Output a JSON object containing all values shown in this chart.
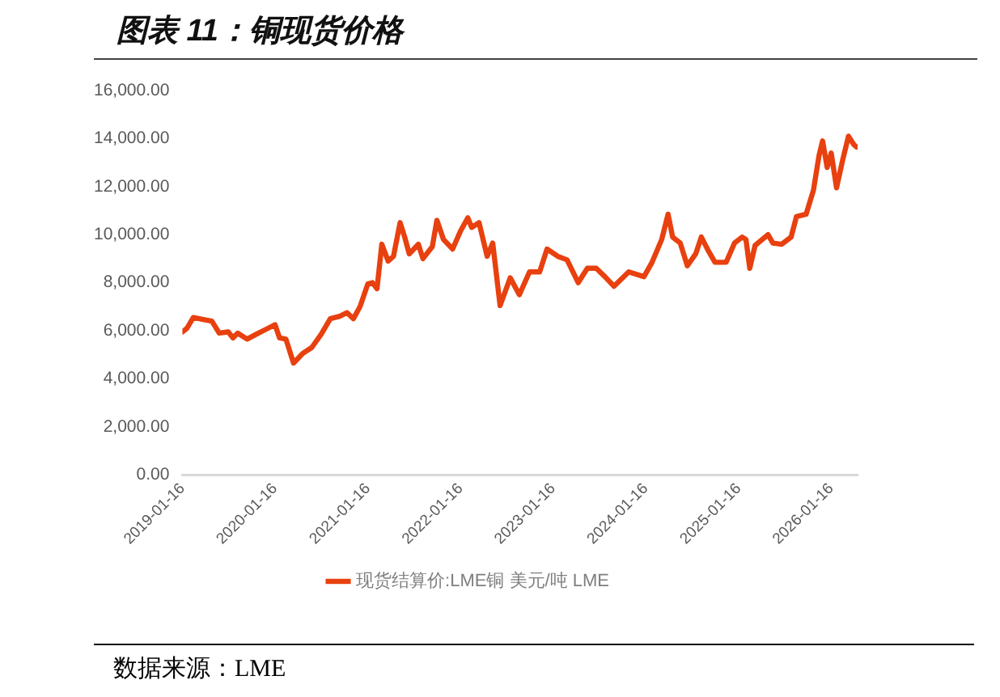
{
  "chart_data": {
    "type": "line",
    "title": "图表 11：铜现货价格",
    "annotations": [
      "数据来源：LME"
    ],
    "x": [
      "2019-01-16",
      "2019-02-03",
      "2019-02-28",
      "2019-04-16",
      "2019-05-12",
      "2019-06-10",
      "2019-07-16",
      "2019-08-03",
      "2019-08-22",
      "2019-09-28",
      "2019-11-03",
      "2019-12-10",
      "2020-01-16",
      "2020-02-03",
      "2020-02-28",
      "2020-03-29",
      "2020-05-04",
      "2020-06-09",
      "2020-07-16",
      "2020-08-21",
      "2020-09-27",
      "2020-10-26",
      "2020-11-20",
      "2020-12-16",
      "2021-01-16",
      "2021-02-03",
      "2021-02-21",
      "2021-03-12",
      "2021-04-06",
      "2021-04-27",
      "2021-05-23",
      "2021-06-10",
      "2021-06-28",
      "2021-08-03",
      "2021-08-21",
      "2021-09-27",
      "2021-10-15",
      "2021-11-10",
      "2021-12-16",
      "2022-01-16",
      "2022-02-14",
      "2022-03-01",
      "2022-03-30",
      "2022-05-01",
      "2022-05-23",
      "2022-06-21",
      "2022-07-31",
      "2022-09-05",
      "2022-10-15",
      "2022-11-24",
      "2022-12-23",
      "2023-02-03",
      "2023-03-12",
      "2023-04-25",
      "2023-05-31",
      "2023-07-05",
      "2023-08-08",
      "2023-09-13",
      "2023-11-10",
      "2024-01-09",
      "2024-02-10",
      "2024-03-19",
      "2024-04-13",
      "2024-05-01",
      "2024-05-31",
      "2024-06-28",
      "2024-07-31",
      "2024-08-22",
      "2024-09-20",
      "2024-10-15",
      "2024-11-28",
      "2024-12-31",
      "2025-01-30",
      "2025-02-14",
      "2025-03-01",
      "2025-03-22",
      "2025-05-12",
      "2025-05-31",
      "2025-07-05",
      "2025-08-11",
      "2025-09-01",
      "2025-10-09",
      "2025-11-07",
      "2025-11-29",
      "2025-12-13",
      "2025-12-31",
      "2026-01-16",
      "2026-02-06",
      "2026-03-03",
      "2026-03-25",
      "2026-04-15",
      "2026-04-26"
    ],
    "series": [
      {
        "name": "现货结算价:LME铜 美元/吨 LME",
        "color": "#e8400f",
        "values": [
          5950,
          6100,
          6550,
          6450,
          6400,
          5900,
          5950,
          5700,
          5900,
          5650,
          5850,
          6050,
          6250,
          5700,
          5650,
          4650,
          5050,
          5300,
          5850,
          6500,
          6600,
          6750,
          6500,
          7000,
          7950,
          8000,
          7750,
          9600,
          8900,
          9100,
          10500,
          9900,
          9200,
          9600,
          9000,
          9500,
          10600,
          9800,
          9400,
          10150,
          10700,
          10300,
          10500,
          9100,
          9650,
          7050,
          8200,
          7500,
          8450,
          8450,
          9400,
          9100,
          8950,
          8000,
          8600,
          8600,
          8250,
          7850,
          8450,
          8250,
          8850,
          9800,
          10850,
          9900,
          9650,
          8700,
          9200,
          9900,
          9300,
          8850,
          8850,
          9650,
          9900,
          9800,
          8600,
          9550,
          10000,
          9650,
          9600,
          9900,
          10750,
          10850,
          11850,
          13300,
          13900,
          12800,
          13400,
          11950,
          13150,
          14100,
          13750,
          13650
        ]
      }
    ],
    "xlim": [
      "2019-01-16",
      "2026-04-30"
    ],
    "xticks": [
      "2019-01-16",
      "2020-01-16",
      "2021-01-16",
      "2022-01-16",
      "2023-01-16",
      "2024-01-16",
      "2025-01-16",
      "2026-01-16"
    ],
    "ylim": [
      0,
      16000
    ],
    "yticks": [
      {
        "value": 0,
        "label": "0.00"
      },
      {
        "value": 2000,
        "label": "2,000.00"
      },
      {
        "value": 4000,
        "label": "4,000.00"
      },
      {
        "value": 6000,
        "label": "6,000.00"
      },
      {
        "value": 8000,
        "label": "8,000.00"
      },
      {
        "value": 10000,
        "label": "10,000.00"
      },
      {
        "value": 12000,
        "label": "12,000.00"
      },
      {
        "value": 14000,
        "label": "14,000.00"
      },
      {
        "value": 16000,
        "label": "16,000.00"
      }
    ],
    "grid": false,
    "legend": "bottom",
    "marker": "none",
    "line_style": "solid"
  }
}
